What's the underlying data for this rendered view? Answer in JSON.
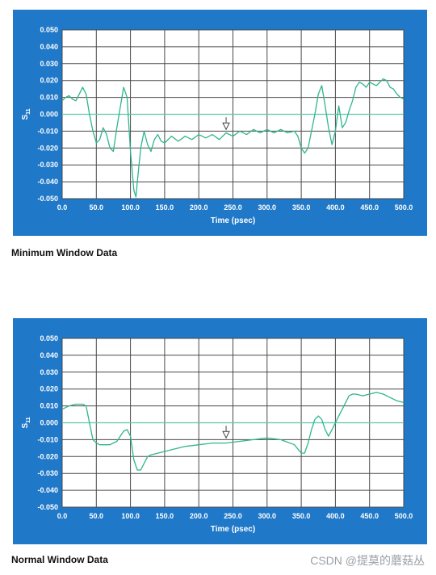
{
  "charts": [
    {
      "caption": "Minimum Window Data",
      "chart_data": {
        "type": "line",
        "xlabel": "Time (psec)",
        "ylabel": "S11",
        "xlim": [
          0,
          500
        ],
        "ylim": [
          -0.05,
          0.05
        ],
        "x_ticks": [
          "0.0",
          "50.0",
          "100.0",
          "150.0",
          "200.0",
          "250.0",
          "300.0",
          "350.0",
          "400.0",
          "450.0",
          "500.0"
        ],
        "y_ticks": [
          "0.050",
          "0.040",
          "0.030",
          "0.020",
          "0.010",
          "0.000",
          "-0.010",
          "-0.020",
          "-0.030",
          "-0.040",
          "-0.050"
        ],
        "grid": true,
        "reference_line_y": 0.0,
        "marker": {
          "x": 240,
          "y": -0.008
        },
        "series": [
          {
            "x": [
              0,
              5,
              10,
              15,
              20,
              25,
              30,
              35,
              40,
              45,
              50,
              55,
              60,
              65,
              70,
              75,
              80,
              85,
              90,
              95,
              100,
              105,
              108,
              110,
              115,
              120,
              125,
              130,
              135,
              140,
              145,
              150,
              160,
              170,
              180,
              190,
              200,
              210,
              220,
              230,
              240,
              250,
              260,
              270,
              280,
              290,
              300,
              310,
              320,
              330,
              340,
              345,
              350,
              355,
              360,
              365,
              370,
              375,
              380,
              385,
              390,
              395,
              400,
              405,
              410,
              415,
              420,
              425,
              430,
              435,
              440,
              445,
              450,
              455,
              460,
              465,
              470,
              475,
              480,
              485,
              490,
              495,
              500
            ],
            "y": [
              0.008,
              0.01,
              0.011,
              0.009,
              0.008,
              0.012,
              0.016,
              0.012,
              0.0,
              -0.01,
              -0.017,
              -0.015,
              -0.008,
              -0.012,
              -0.02,
              -0.022,
              -0.008,
              0.004,
              0.016,
              0.01,
              -0.022,
              -0.045,
              -0.049,
              -0.04,
              -0.02,
              -0.01,
              -0.018,
              -0.022,
              -0.015,
              -0.012,
              -0.016,
              -0.017,
              -0.013,
              -0.016,
              -0.013,
              -0.015,
              -0.012,
              -0.014,
              -0.012,
              -0.015,
              -0.011,
              -0.013,
              -0.01,
              -0.012,
              -0.009,
              -0.011,
              -0.009,
              -0.011,
              -0.009,
              -0.011,
              -0.01,
              -0.013,
              -0.02,
              -0.023,
              -0.02,
              -0.01,
              0.0,
              0.012,
              0.017,
              0.005,
              -0.008,
              -0.018,
              -0.01,
              0.005,
              -0.008,
              -0.005,
              0.002,
              0.008,
              0.016,
              0.019,
              0.018,
              0.016,
              0.019,
              0.018,
              0.017,
              0.019,
              0.021,
              0.02,
              0.016,
              0.015,
              0.012,
              0.01,
              0.009
            ]
          }
        ]
      }
    },
    {
      "caption": "Normal Window Data",
      "chart_data": {
        "type": "line",
        "xlabel": "Time (psec)",
        "ylabel": "S11",
        "xlim": [
          0,
          500
        ],
        "ylim": [
          -0.05,
          0.05
        ],
        "x_ticks": [
          "0.0",
          "50.0",
          "100.0",
          "150.0",
          "200.0",
          "250.0",
          "300.0",
          "350.0",
          "400.0",
          "450.0",
          "500.0"
        ],
        "y_ticks": [
          "0.050",
          "0.040",
          "0.030",
          "0.020",
          "0.010",
          "0.000",
          "-0.010",
          "-0.020",
          "-0.030",
          "-0.040",
          "-0.050"
        ],
        "grid": true,
        "reference_line_y": 0.0,
        "marker": {
          "x": 240,
          "y": -0.008
        },
        "series": [
          {
            "x": [
              0,
              10,
              20,
              30,
              35,
              40,
              45,
              50,
              55,
              60,
              70,
              80,
              90,
              95,
              100,
              105,
              110,
              115,
              120,
              125,
              130,
              140,
              150,
              160,
              180,
              200,
              220,
              240,
              260,
              280,
              300,
              320,
              340,
              350,
              355,
              360,
              365,
              370,
              375,
              380,
              385,
              390,
              395,
              400,
              405,
              410,
              415,
              420,
              425,
              430,
              440,
              450,
              460,
              470,
              475,
              480,
              490,
              500
            ],
            "y": [
              0.008,
              0.01,
              0.011,
              0.011,
              0.01,
              0.0,
              -0.01,
              -0.012,
              -0.013,
              -0.013,
              -0.013,
              -0.011,
              -0.005,
              -0.004,
              -0.008,
              -0.022,
              -0.028,
              -0.028,
              -0.024,
              -0.02,
              -0.019,
              -0.018,
              -0.017,
              -0.016,
              -0.014,
              -0.013,
              -0.012,
              -0.012,
              -0.011,
              -0.01,
              -0.009,
              -0.01,
              -0.013,
              -0.018,
              -0.018,
              -0.012,
              -0.004,
              0.002,
              0.004,
              0.002,
              -0.004,
              -0.008,
              -0.004,
              0.0,
              0.004,
              0.008,
              0.012,
              0.016,
              0.017,
              0.017,
              0.016,
              0.017,
              0.018,
              0.017,
              0.016,
              0.015,
              0.013,
              0.012
            ]
          }
        ]
      }
    }
  ],
  "watermark": "CSDN @提莫的蘑菇丛",
  "colors": {
    "panel": "#1f78c8",
    "plot_bg": "#ffffff",
    "grid": "#4a4a4a",
    "series": "#2fb58f",
    "reference": "#5cc9a7"
  }
}
